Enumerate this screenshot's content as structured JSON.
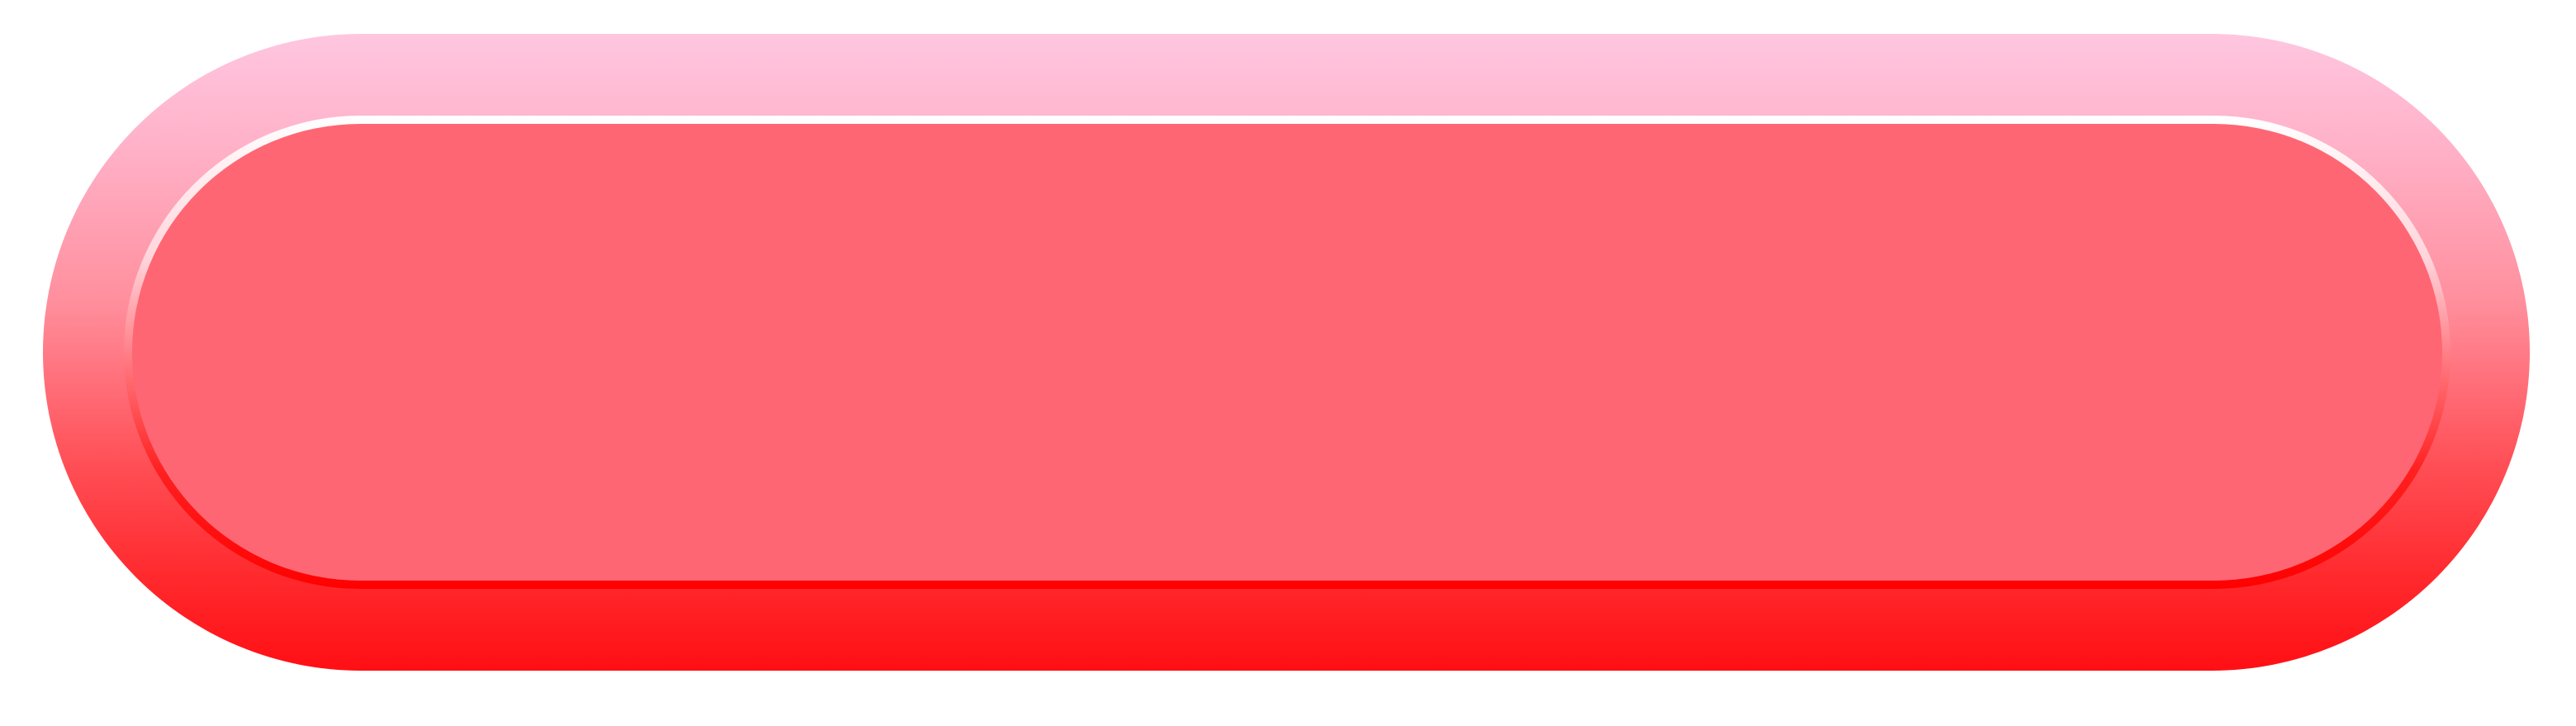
{
  "button": {
    "label": "",
    "colors": {
      "outer_top": "#ffc6e0",
      "outer_bottom": "#ff0f14",
      "inner_fill": "#ff6673",
      "ring_top": "#ffffff",
      "ring_bottom": "#ff0000"
    }
  }
}
